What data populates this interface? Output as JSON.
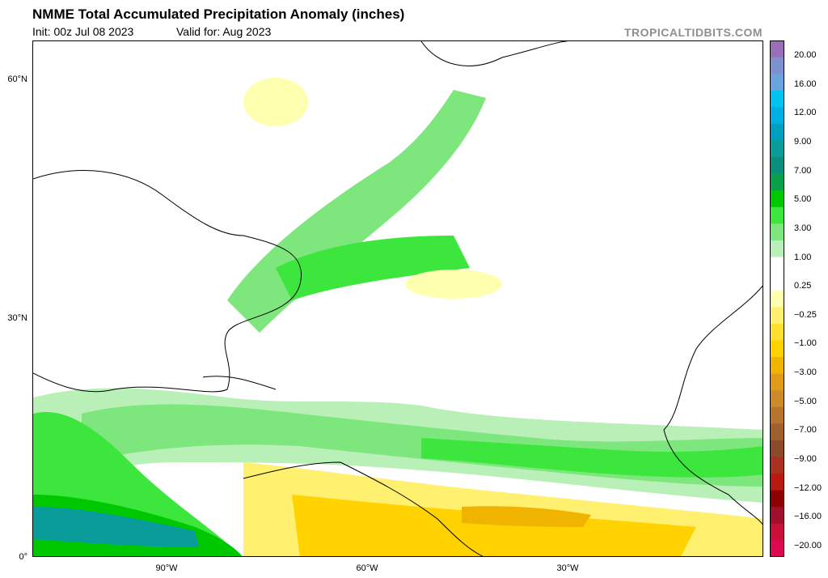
{
  "header": {
    "title": "NMME Total Accumulated Precipitation Anomaly (inches)",
    "init": "Init: 00z Jul 08 2023",
    "valid": "Valid for: Aug 2023",
    "brand": "TROPICALTIDBITS.COM"
  },
  "axes": {
    "lat_labels": [
      "60°N",
      "30°N",
      "0°"
    ],
    "lon_labels": [
      "90°W",
      "60°W",
      "30°W"
    ]
  },
  "colorbar": {
    "labels": [
      "20.00",
      "16.00",
      "12.00",
      "9.00",
      "7.00",
      "5.00",
      "3.00",
      "1.00",
      "0.25",
      "−0.25",
      "−1.00",
      "−3.00",
      "−5.00",
      "−7.00",
      "−9.00",
      "−12.00",
      "−16.00",
      "−20.00"
    ],
    "colors": [
      "#9a6fba",
      "#7f8fd0",
      "#6aa3e0",
      "#00c4f0",
      "#00b0e0",
      "#009fc0",
      "#0a9b9b",
      "#0a8f7a",
      "#0aa04a",
      "#00c800",
      "#3ce63c",
      "#7de67d",
      "#b8f0b8",
      "#ffffff",
      "#ffffff",
      "#ffffb0",
      "#fff070",
      "#ffe030",
      "#ffd200",
      "#f0b400",
      "#e09b18",
      "#cd8a28",
      "#b8742e",
      "#a0602e",
      "#8c4b28",
      "#aa3020",
      "#b81a10",
      "#8c0000",
      "#a0102a",
      "#c8103a",
      "#dc0a50"
    ]
  }
}
